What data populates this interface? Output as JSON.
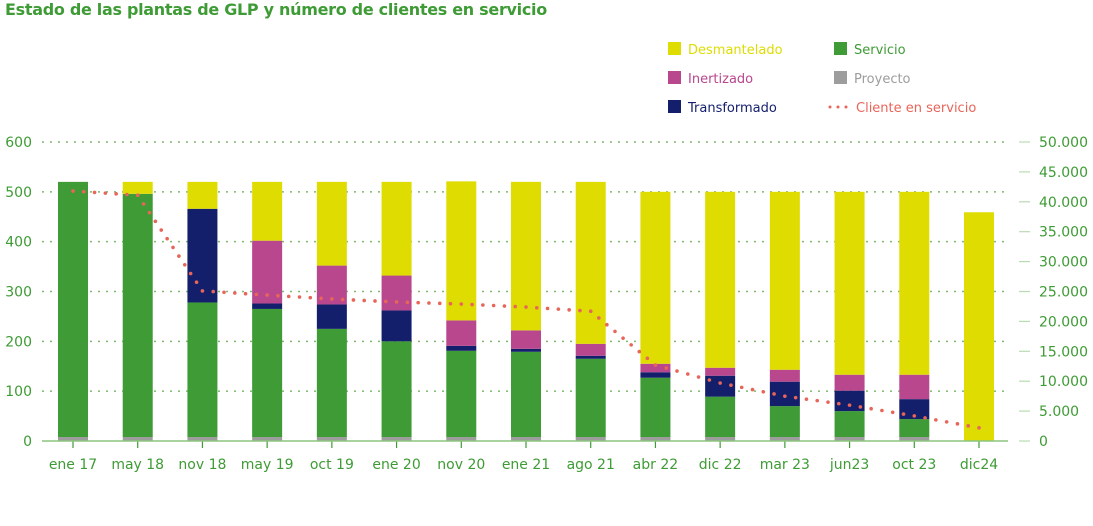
{
  "chart_data": {
    "type": "bar",
    "stacked": true,
    "title": "Estado de las plantas de GLP y número de clientes en servicio",
    "categories": [
      "ene 17",
      "may 18",
      "nov 18",
      "may 19",
      "oct 19",
      "ene 20",
      "nov 20",
      "ene 21",
      "ago 21",
      "abr 22",
      "dic 22",
      "mar 23",
      "jun23",
      "oct 23",
      "dic24"
    ],
    "series": [
      {
        "name": "Proyecto",
        "color": "#9d9d9d",
        "values": [
          8,
          8,
          8,
          8,
          8,
          8,
          8,
          8,
          8,
          8,
          8,
          8,
          8,
          8,
          0
        ]
      },
      {
        "name": "Servicio",
        "color": "#3e9b35",
        "values": [
          512,
          488,
          270,
          257,
          217,
          192,
          173,
          171,
          157,
          119,
          81,
          62,
          52,
          36,
          0
        ]
      },
      {
        "name": "Transformado",
        "color": "#131f6b",
        "values": [
          0,
          0,
          188,
          11,
          49,
          62,
          10,
          6,
          6,
          11,
          42,
          49,
          41,
          40,
          0
        ]
      },
      {
        "name": "Inertizado",
        "color": "#b8478e",
        "values": [
          0,
          0,
          0,
          126,
          78,
          70,
          51,
          37,
          24,
          17,
          16,
          24,
          32,
          49,
          0
        ]
      },
      {
        "name": "Desmantelado",
        "color": "#dedc00",
        "values": [
          0,
          24,
          54,
          118,
          168,
          188,
          279,
          298,
          325,
          345,
          353,
          357,
          367,
          367,
          459
        ]
      }
    ],
    "line_series": {
      "name": "Cliente en servicio",
      "color": "#e8655a",
      "axis": "right",
      "style": "dotted",
      "values": [
        41800,
        41100,
        25100,
        24400,
        23750,
        23250,
        22900,
        22400,
        21700,
        12700,
        9700,
        7500,
        6000,
        4200,
        2200
      ]
    },
    "y_left": {
      "lim": [
        0,
        600
      ],
      "ticks": [
        "0",
        "100",
        "200",
        "300",
        "400",
        "500",
        "600"
      ]
    },
    "y_right": {
      "lim": [
        0,
        50000
      ],
      "ticks": [
        "0",
        "5.000",
        "10.000",
        "15.000",
        "20.000",
        "25.000",
        "30.000",
        "35.000",
        "40.000",
        "45.000",
        "50.000"
      ]
    },
    "grid": true,
    "legend_position": "top-right",
    "legend": [
      {
        "label": "Desmantelado",
        "color": "#dedc00",
        "kind": "square"
      },
      {
        "label": "Servicio",
        "color": "#3e9b35",
        "kind": "square"
      },
      {
        "label": "Inertizado",
        "color": "#b8478e",
        "kind": "square"
      },
      {
        "label": "Proyecto",
        "color": "#9d9d9d",
        "kind": "square"
      },
      {
        "label": "Transformado",
        "color": "#131f6b",
        "kind": "square"
      },
      {
        "label": "Cliente en servicio",
        "color": "#e8655a",
        "kind": "dots"
      }
    ],
    "text_color": "#3e9b35"
  }
}
